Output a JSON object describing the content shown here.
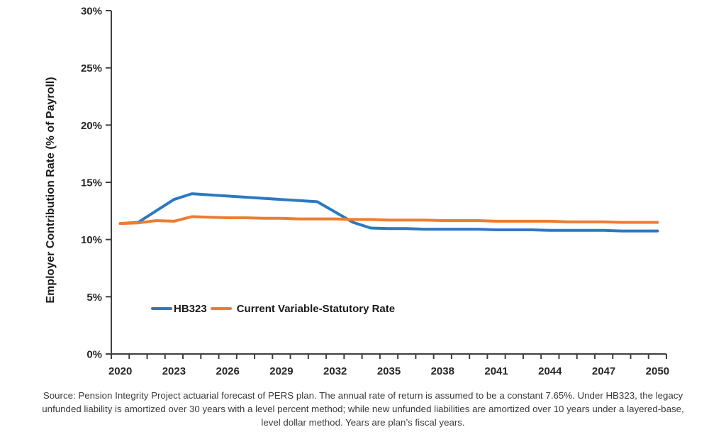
{
  "y_axis_title": "Employer Contribution Rate (% of Payroll)",
  "legend": {
    "series1_label": "HB323",
    "series2_label": "Current Variable-Statutory Rate"
  },
  "source_lines": [
    "Source: Pension Integrity Project actuarial forecast of PERS plan. The annual rate of return is assumed to be a constant 7.65%. Under HB323, the legacy",
    "unfunded liability is amortized over 30 years with a level percent method; while new unfunded liabilities are amortized over 10 years under a layered-base,",
    "level dollar method. Years are plan’s fiscal years."
  ],
  "colors": {
    "series1": "#2B79C2",
    "series2": "#ED7D31",
    "axis": "#3F3F3F",
    "tick_text": "#262626",
    "source_text": "#3A3A3A"
  },
  "chart_data": {
    "type": "line",
    "title": "",
    "xlabel": "",
    "ylabel": "Employer Contribution Rate (% of Payroll)",
    "ylim": [
      0,
      30
    ],
    "y_tick_step": 5,
    "y_ticks": [
      "0%",
      "5%",
      "10%",
      "15%",
      "20%",
      "25%",
      "30%"
    ],
    "grid": false,
    "legend_position": "inside-bottom-left",
    "x": [
      2020,
      2021,
      2022,
      2023,
      2024,
      2025,
      2026,
      2027,
      2028,
      2029,
      2030,
      2031,
      2032,
      2033,
      2034,
      2035,
      2036,
      2037,
      2038,
      2039,
      2040,
      2041,
      2042,
      2043,
      2044,
      2045,
      2046,
      2047,
      2048,
      2049,
      2050
    ],
    "x_tick_labels": [
      "2020",
      "2023",
      "2026",
      "2029",
      "2032",
      "2035",
      "2038",
      "2041",
      "2044",
      "2047",
      "2050"
    ],
    "series": [
      {
        "name": "HB323",
        "color": "#2B79C2",
        "values": [
          11.4,
          11.5,
          12.5,
          13.5,
          14.0,
          13.9,
          13.8,
          13.7,
          13.6,
          13.5,
          13.4,
          13.3,
          12.4,
          11.5,
          11.0,
          10.95,
          10.95,
          10.9,
          10.9,
          10.9,
          10.9,
          10.85,
          10.85,
          10.85,
          10.8,
          10.8,
          10.8,
          10.8,
          10.75,
          10.75,
          10.75
        ]
      },
      {
        "name": "Current Variable-Statutory Rate",
        "color": "#ED7D31",
        "values": [
          11.4,
          11.45,
          11.65,
          11.6,
          12.0,
          11.95,
          11.9,
          11.9,
          11.85,
          11.85,
          11.8,
          11.8,
          11.8,
          11.75,
          11.75,
          11.7,
          11.7,
          11.7,
          11.65,
          11.65,
          11.65,
          11.6,
          11.6,
          11.6,
          11.6,
          11.55,
          11.55,
          11.55,
          11.5,
          11.5,
          11.5
        ]
      }
    ]
  }
}
